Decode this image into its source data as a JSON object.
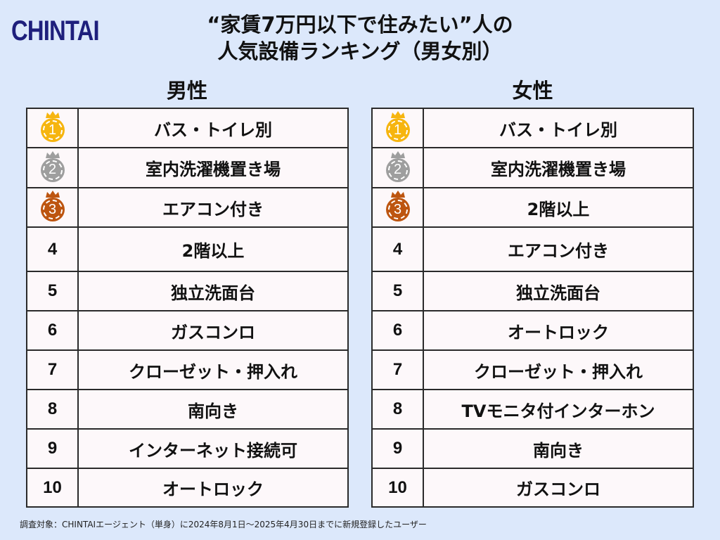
{
  "logo": "CHINTAI",
  "title": {
    "line1": "“家賃7万円以下で住みたい”人の",
    "line2": "人気設備ランキング（男女別）"
  },
  "colors": {
    "background": "#dce8fb",
    "logo": "#1e1f7c",
    "gold": "#f6b50f",
    "silver": "#9e9e9e",
    "bronze": "#bd5510"
  },
  "male": {
    "heading": "男性",
    "rows": [
      {
        "rank": "1",
        "medal": "gold",
        "item": "バス・トイレ別"
      },
      {
        "rank": "2",
        "medal": "silver",
        "item": "室内洗濯機置き場"
      },
      {
        "rank": "3",
        "medal": "bronze",
        "item": "エアコン付き"
      },
      {
        "rank": "4",
        "item": "2階以上"
      },
      {
        "rank": "5",
        "item": "独立洗面台"
      },
      {
        "rank": "6",
        "item": "ガスコンロ"
      },
      {
        "rank": "7",
        "item": "クローゼット・押入れ"
      },
      {
        "rank": "8",
        "item": "南向き"
      },
      {
        "rank": "9",
        "item": "インターネット接続可"
      },
      {
        "rank": "10",
        "item": "オートロック"
      }
    ]
  },
  "female": {
    "heading": "女性",
    "rows": [
      {
        "rank": "1",
        "medal": "gold",
        "item": "バス・トイレ別"
      },
      {
        "rank": "2",
        "medal": "silver",
        "item": "室内洗濯機置き場"
      },
      {
        "rank": "3",
        "medal": "bronze",
        "item": "2階以上"
      },
      {
        "rank": "4",
        "item": "エアコン付き"
      },
      {
        "rank": "5",
        "item": "独立洗面台"
      },
      {
        "rank": "6",
        "item": "オートロック"
      },
      {
        "rank": "7",
        "item": "クローゼット・押入れ"
      },
      {
        "rank": "8",
        "item": "TVモニタ付インターホン"
      },
      {
        "rank": "9",
        "item": "南向き"
      },
      {
        "rank": "10",
        "item": "ガスコンロ"
      }
    ]
  },
  "footnote": "調査対象：CHINTAIエージェント（単身）に2024年8月1日〜2025年4月30日までに新規登録したユーザー"
}
